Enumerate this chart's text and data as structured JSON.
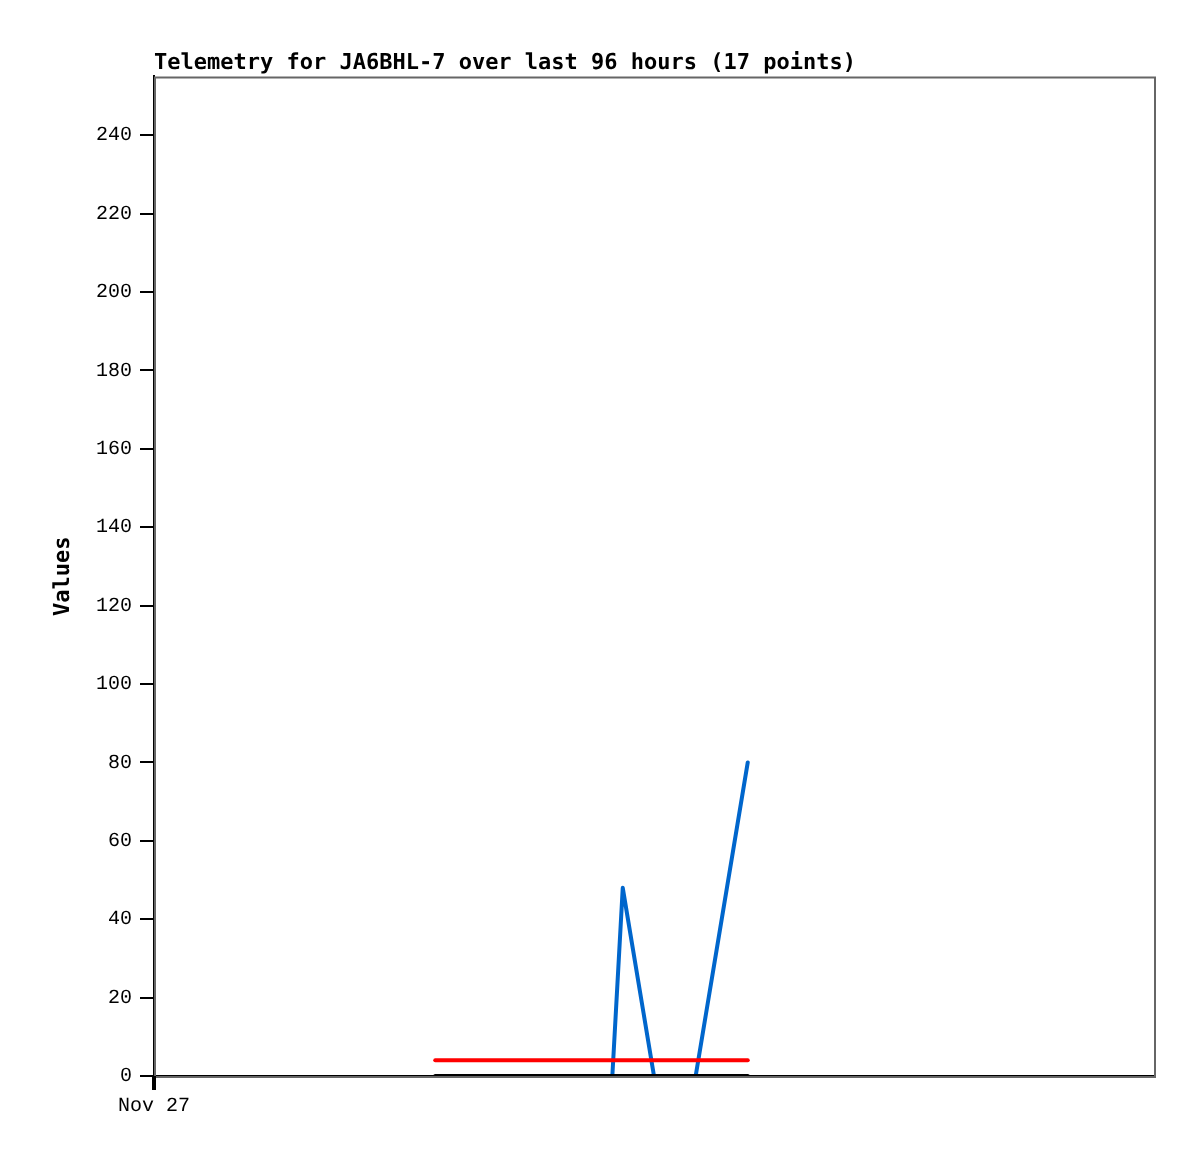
{
  "chart_data": {
    "type": "line",
    "title": "Telemetry for JA6BHL-7 over last 96 hours (17 points)",
    "ylabel": "Values",
    "annotations": [
      "Nov 27"
    ],
    "categories": [
      null,
      null,
      null,
      null,
      null,
      null,
      null,
      null,
      null,
      null,
      null,
      null,
      null,
      null,
      null,
      null,
      null,
      null,
      null,
      null,
      null,
      null,
      null,
      null,
      null,
      null,
      null,
      null,
      null,
      null,
      null,
      null,
      null,
      null,
      null,
      null,
      null,
      null,
      null,
      null,
      null,
      null,
      null,
      null,
      null,
      null,
      null,
      null,
      null,
      null,
      null,
      null,
      null,
      null,
      null,
      null,
      null,
      null,
      null,
      null,
      null,
      null,
      null,
      null,
      null,
      null,
      null,
      null,
      null,
      null,
      null,
      null,
      null,
      null,
      null,
      null,
      null,
      null,
      null,
      null,
      null,
      null,
      null,
      null,
      null,
      null,
      null,
      null,
      null,
      null,
      null,
      null,
      null,
      null,
      null,
      null,
      null
    ],
    "ylim": [
      0,
      255
    ],
    "yticks": [
      0,
      20,
      40,
      60,
      80,
      100,
      120,
      140,
      160,
      180,
      200,
      220,
      240
    ],
    "grid": false,
    "legend": false,
    "marker": "none",
    "line_style": "solid",
    "series": [
      {
        "color": "#0066cc",
        "values": [
          null,
          null,
          null,
          null,
          null,
          null,
          null,
          null,
          null,
          null,
          null,
          null,
          null,
          null,
          null,
          null,
          null,
          null,
          null,
          null,
          null,
          null,
          null,
          null,
          null,
          null,
          null,
          null,
          null,
          null,
          null,
          null,
          null,
          null,
          null,
          null,
          null,
          null,
          null,
          null,
          null,
          null,
          null,
          null,
          0,
          48,
          32,
          16,
          0,
          null,
          null,
          null,
          0,
          16,
          32,
          48,
          64,
          80,
          null,
          null,
          null,
          null,
          null,
          null,
          null,
          null,
          null,
          null,
          null,
          null,
          null,
          null,
          null,
          null,
          null,
          null,
          null,
          null,
          null,
          null,
          null,
          null,
          null,
          null,
          null,
          null,
          null,
          null,
          null,
          null,
          null,
          null,
          null,
          null,
          null,
          null,
          null
        ]
      },
      {
        "color": "#ff0000",
        "values": [
          null,
          null,
          null,
          null,
          null,
          null,
          null,
          null,
          null,
          null,
          null,
          null,
          null,
          null,
          null,
          null,
          null,
          null,
          null,
          null,
          null,
          null,
          null,
          null,
          null,
          null,
          null,
          4,
          4,
          4,
          4,
          4,
          4,
          4,
          4,
          4,
          4,
          4,
          4,
          4,
          4,
          4,
          4,
          4,
          4,
          4,
          4,
          4,
          4,
          4,
          4,
          4,
          4,
          4,
          4,
          4,
          4,
          4,
          null,
          null,
          null,
          null,
          null,
          null,
          null,
          null,
          null,
          null,
          null,
          null,
          null,
          null,
          null,
          null,
          null,
          null,
          null,
          null,
          null,
          null,
          null,
          null,
          null,
          null,
          null,
          null,
          null,
          null,
          null,
          null,
          null,
          null,
          null,
          null,
          null,
          null,
          null
        ]
      },
      {
        "color": "#000000",
        "values": [
          null,
          null,
          null,
          null,
          null,
          null,
          null,
          null,
          null,
          null,
          null,
          null,
          null,
          null,
          null,
          null,
          null,
          null,
          null,
          null,
          null,
          null,
          null,
          null,
          null,
          null,
          null,
          0,
          0,
          0,
          0,
          0,
          0,
          0,
          0,
          0,
          0,
          0,
          0,
          0,
          0,
          0,
          0,
          0,
          0,
          0,
          0,
          0,
          0,
          0,
          0,
          0,
          0,
          0,
          0,
          0,
          0,
          0,
          null,
          null,
          null,
          null,
          null,
          null,
          null,
          null,
          null,
          null,
          null,
          null,
          null,
          null,
          null,
          null,
          null,
          null,
          null,
          null,
          null,
          null,
          null,
          null,
          null,
          null,
          null,
          null,
          null,
          null,
          null,
          null,
          null,
          null,
          null,
          null,
          null,
          null,
          null
        ]
      }
    ]
  }
}
